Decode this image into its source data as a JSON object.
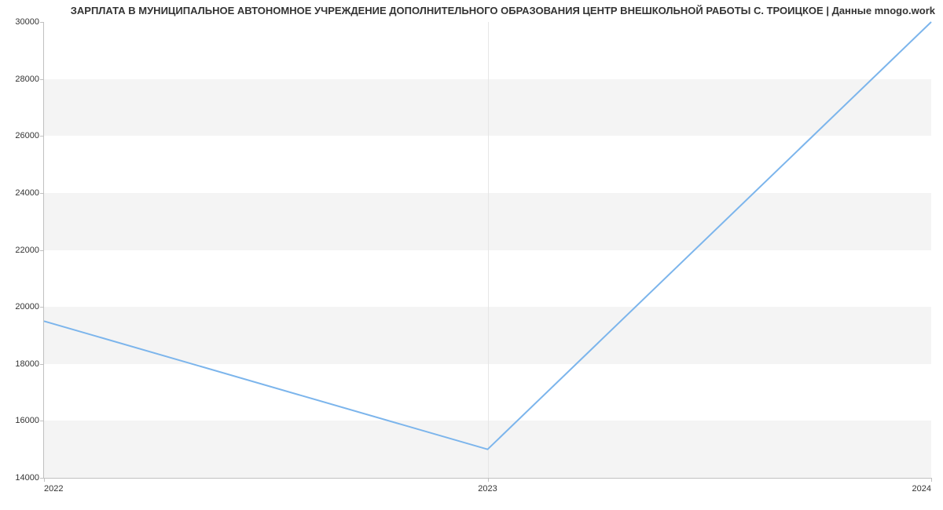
{
  "chart": {
    "type": "line",
    "title": "ЗАРПЛАТА В МУНИЦИПАЛЬНОЕ АВТОНОМНОЕ УЧРЕЖДЕНИЕ ДОПОЛНИТЕЛЬНОГО ОБРАЗОВАНИЯ ЦЕНТР ВНЕШКОЛЬНОЙ РАБОТЫ С. ТРОИЦКОЕ | Данные mnogo.work",
    "title_fontsize": 13,
    "title_align": "right",
    "x_labels": [
      "2022",
      "2023",
      "2024"
    ],
    "x_positions": [
      0,
      0.5,
      1
    ],
    "series": {
      "values": [
        19500,
        15000,
        30000
      ],
      "color": "#7cb5ec",
      "line_width": 2
    },
    "ylim": [
      14000,
      30000
    ],
    "ytick_step": 2000,
    "yticks": [
      14000,
      16000,
      18000,
      20000,
      22000,
      24000,
      26000,
      28000,
      30000
    ],
    "band_color": "#f4f4f4",
    "background_color": "#ffffff",
    "axis_color": "#c0c0c0",
    "grid_v_color": "#e6e6e6",
    "tick_fontsize": 11,
    "tick_color": "#333333"
  }
}
